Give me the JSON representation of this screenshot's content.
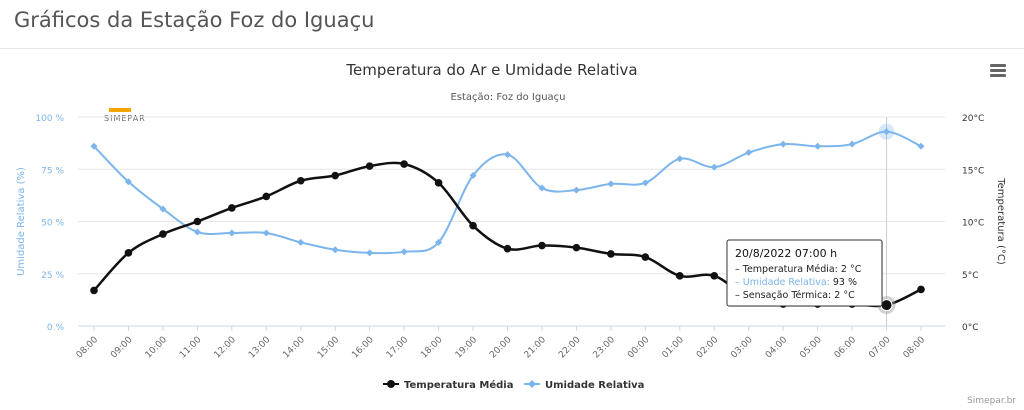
{
  "page": {
    "title": "Gráficos da Estação Foz do Iguaçu"
  },
  "logo": {
    "text": "SIMEPAR"
  },
  "credits": "Simepar.br",
  "chart_data": {
    "type": "line",
    "title": "Temperatura do Ar e Umidade Relativa",
    "subtitle": "Estação: Foz do Iguaçu",
    "categories": [
      "08:00",
      "09:00",
      "10:00",
      "11:00",
      "12:00",
      "13:00",
      "14:00",
      "15:00",
      "16:00",
      "17:00",
      "18:00",
      "19:00",
      "20:00",
      "21:00",
      "22:00",
      "23:00",
      "00:00",
      "01:00",
      "02:00",
      "03:00",
      "04:00",
      "05:00",
      "06:00",
      "07:00",
      "08:00"
    ],
    "y_left": {
      "label": "Umidade Relativa (%)",
      "range": [
        0,
        100
      ],
      "ticks": [
        "0 %",
        "25 %",
        "50 %",
        "75 %",
        "100 %"
      ],
      "tick_values": [
        0,
        25,
        50,
        75,
        100
      ]
    },
    "y_right": {
      "label": "Temperatura (°C)",
      "range": [
        0,
        20
      ],
      "ticks": [
        "0°C",
        "5°C",
        "10°C",
        "15°C",
        "20°C"
      ],
      "tick_values": [
        0,
        5,
        10,
        15,
        20
      ]
    },
    "grid": true,
    "legend_position": "bottom-center",
    "series": [
      {
        "name": "Temperatura Média",
        "axis": "right",
        "color": "#111111",
        "values": [
          3.4,
          7.0,
          8.8,
          10.0,
          11.3,
          12.4,
          13.9,
          14.4,
          15.3,
          15.5,
          13.7,
          9.6,
          7.4,
          7.7,
          7.5,
          6.9,
          6.6,
          4.8,
          4.8,
          2.7,
          2.1,
          2.1,
          2.1,
          2.0,
          3.5
        ]
      },
      {
        "name": "Umidade Relativa",
        "axis": "left",
        "color": "#7cb5ec",
        "values": [
          86,
          69,
          56,
          45,
          44.5,
          44.5,
          40,
          36.5,
          35,
          35.5,
          40,
          72,
          82,
          66,
          65,
          68,
          68.5,
          80,
          76,
          83,
          87,
          86,
          87,
          93,
          86
        ]
      }
    ],
    "tooltip": {
      "title": "20/8/2022 07:00 h",
      "lines": [
        "– Temperatura Média: 2 °C",
        "– Umidade Relativa: 93 %",
        "– Sensação Térmica: 2 °C"
      ],
      "index": 23
    },
    "colors": {
      "temp": "#111111",
      "humidity": "#7cb5ec",
      "axis_label": "#7cb5ec",
      "grid": "#e6e6e6"
    }
  }
}
